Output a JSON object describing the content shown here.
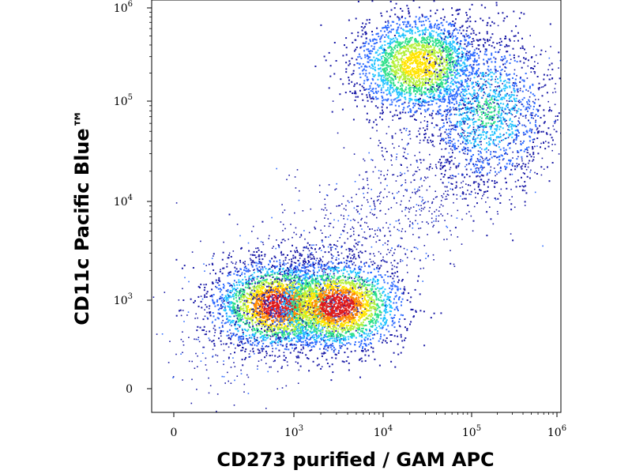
{
  "chart_data": {
    "type": "heatmap",
    "subtype": "flow-cytometry density scatter",
    "xlabel": "CD273 purified / GAM APC",
    "ylabel": "CD11c Pacific Blue™",
    "x_scale": "biexponential (log above ~10^2, linear near 0)",
    "y_scale": "biexponential (log above ~10^2, linear near 0)",
    "xlim": [
      -200,
      1200000
    ],
    "ylim": [
      -200,
      1200000
    ],
    "x_ticks": [
      {
        "base": "0",
        "exp": ""
      },
      {
        "base": "10",
        "exp": "3"
      },
      {
        "base": "10",
        "exp": "4"
      },
      {
        "base": "10",
        "exp": "5"
      },
      {
        "base": "10",
        "exp": "6"
      }
    ],
    "y_ticks": [
      {
        "base": "0",
        "exp": ""
      },
      {
        "base": "10",
        "exp": "3"
      },
      {
        "base": "10",
        "exp": "4"
      },
      {
        "base": "10",
        "exp": "5"
      },
      {
        "base": "10",
        "exp": "6"
      }
    ],
    "color_scale": [
      "#1a1aa6",
      "#2f6bff",
      "#22c3ff",
      "#2fe08a",
      "#b5f03a",
      "#ffe400",
      "#ff8a00",
      "#e01b1b"
    ],
    "populations": [
      {
        "name": "",
        "x_center": 400,
        "y_center": 700,
        "spread_x_decades": 0.35,
        "spread_y_decades": 0.22,
        "peak_density": "high"
      },
      {
        "name": "",
        "x_center": 3000,
        "y_center": 700,
        "spread_x_decades": 0.35,
        "spread_y_decades": 0.22,
        "peak_density": "high"
      },
      {
        "name": "",
        "x_center": 25000,
        "y_center": 250000,
        "spread_x_decades": 0.35,
        "spread_y_decades": 0.25,
        "peak_density": "medium"
      },
      {
        "name": "",
        "x_center": 150000,
        "y_center": 80000,
        "spread_x_decades": 0.35,
        "spread_y_decades": 0.4,
        "peak_density": "low"
      }
    ],
    "grid": false,
    "legend": "none"
  }
}
